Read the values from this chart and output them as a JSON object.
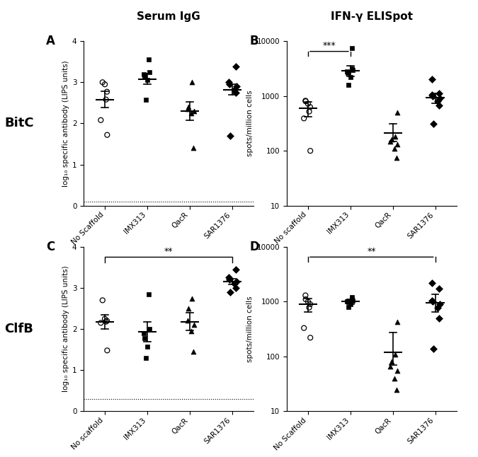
{
  "title_left": "Serum IgG",
  "title_right": "IFN-γ ELISpot",
  "row_labels": [
    "BitC",
    "ClfB"
  ],
  "A_categories": [
    "No Scaffold",
    "IMX313",
    "QacR",
    "SAR1376"
  ],
  "A_data": {
    "No Scaffold": [
      1.72,
      2.08,
      2.58,
      2.77,
      2.95,
      3.0
    ],
    "IMX313": [
      2.58,
      3.05,
      3.15,
      3.2,
      3.25,
      3.55
    ],
    "QacR": [
      1.4,
      2.25,
      2.3,
      2.35,
      2.4,
      3.0
    ],
    "SAR1376": [
      1.7,
      2.75,
      2.82,
      2.9,
      2.95,
      3.0,
      3.38
    ]
  },
  "A_means": {
    "No Scaffold": 2.58,
    "IMX313": 3.08,
    "QacR": 2.3,
    "SAR1376": 2.82
  },
  "A_sem": {
    "No Scaffold": 0.2,
    "IMX313": 0.13,
    "QacR": 0.22,
    "SAR1376": 0.13
  },
  "A_hline": 0.1,
  "A_ylabel": "log₁₀ specific antibody (LIPS units)",
  "B_categories": [
    "No scaffold",
    "IMX313",
    "QacR",
    "SAR1376"
  ],
  "B_data": {
    "No scaffold": [
      100,
      390,
      520,
      630,
      720,
      800,
      820
    ],
    "IMX313": [
      1600,
      2200,
      2600,
      2800,
      3000,
      3200,
      7500
    ],
    "QacR": [
      75,
      110,
      130,
      150,
      160,
      180,
      500
    ],
    "SAR1376": [
      310,
      680,
      800,
      900,
      1000,
      1050,
      1100,
      2000
    ]
  },
  "B_means": {
    "No scaffold": 600,
    "IMX313": 2900,
    "QacR": 210,
    "SAR1376": 930
  },
  "B_sem_lo": {
    "No scaffold": 180,
    "IMX313": 600,
    "QacR": 60,
    "SAR1376": 200
  },
  "B_sem_hi": {
    "No scaffold": 180,
    "IMX313": 600,
    "QacR": 100,
    "SAR1376": 200
  },
  "B_ylabel": "spots/million cells",
  "B_sig_bracket": [
    0,
    1
  ],
  "B_sig_text": "***",
  "C_categories": [
    "No scaffold",
    "IMX313",
    "QacR",
    "SAR1376"
  ],
  "C_data": {
    "No scaffold": [
      1.48,
      2.15,
      2.18,
      2.2,
      2.25,
      2.7
    ],
    "IMX313": [
      1.3,
      1.58,
      1.78,
      1.9,
      2.0,
      2.85
    ],
    "QacR": [
      1.45,
      1.95,
      2.1,
      2.2,
      2.5,
      2.75
    ],
    "SAR1376": [
      2.9,
      3.0,
      3.1,
      3.15,
      3.2,
      3.25,
      3.45
    ]
  },
  "C_means": {
    "No scaffold": 2.18,
    "IMX313": 1.93,
    "QacR": 2.18,
    "SAR1376": 3.15
  },
  "C_sem": {
    "No scaffold": 0.17,
    "IMX313": 0.24,
    "QacR": 0.22,
    "SAR1376": 0.07
  },
  "C_hline": 0.3,
  "C_ylabel": "log₁₀ specific antibody (LIPS units)",
  "C_sig_bracket": [
    0,
    3
  ],
  "C_sig_text": "**",
  "D_categories": [
    "No Scaffold",
    "IMX313",
    "QacR",
    "SAR1376"
  ],
  "D_data": {
    "No Scaffold": [
      220,
      330,
      780,
      900,
      1000,
      1100,
      1300
    ],
    "IMX313": [
      790,
      900,
      1000,
      1020,
      1050,
      1100,
      1200
    ],
    "QacR": [
      25,
      40,
      55,
      65,
      80,
      110,
      430
    ],
    "SAR1376": [
      140,
      490,
      780,
      900,
      1000,
      1050,
      1700,
      2200
    ]
  },
  "D_means": {
    "No Scaffold": 900,
    "IMX313": 1000,
    "QacR": 120,
    "SAR1376": 950
  },
  "D_sem_lo": {
    "No Scaffold": 250,
    "IMX313": 100,
    "QacR": 50,
    "SAR1376": 300
  },
  "D_sem_hi": {
    "No Scaffold": 250,
    "IMX313": 100,
    "QacR": 150,
    "SAR1376": 400
  },
  "D_ylabel": "spots/million cells",
  "D_sig_bracket": [
    0,
    3
  ],
  "D_sig_text": "**",
  "markersize": 5
}
